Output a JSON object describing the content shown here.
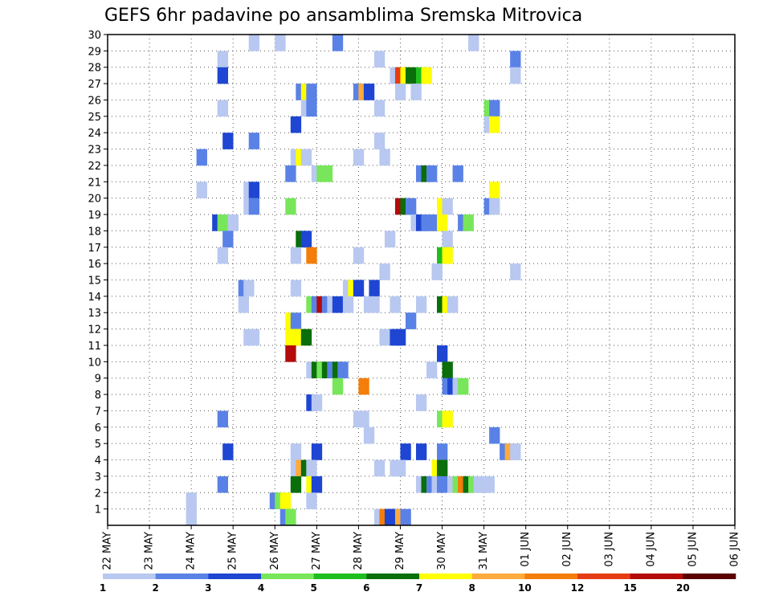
{
  "chart_data": {
    "type": "heatmap",
    "title": "GEFS 6hr padavine po ansamblima Sremska Mitrovica",
    "xlabel": "",
    "ylabel": "",
    "x_ticks": [
      "22 MAY",
      "23 MAY",
      "24 MAY",
      "25 MAY",
      "26 MAY",
      "27 MAY",
      "28 MAY",
      "29 MAY",
      "30 MAY",
      "31 MAY",
      "01 JUN",
      "02 JUN",
      "03 JUN",
      "04 JUN",
      "05 JUN",
      "06 JUN"
    ],
    "y_ticks": [
      1,
      2,
      3,
      4,
      5,
      6,
      7,
      8,
      9,
      10,
      11,
      12,
      13,
      14,
      15,
      16,
      17,
      18,
      19,
      20,
      21,
      22,
      23,
      24,
      25,
      26,
      27,
      28,
      29,
      30
    ],
    "ylim": [
      0,
      30
    ],
    "grid": true,
    "legend": {
      "placement": "bottom",
      "levels": [
        1,
        2,
        3,
        4,
        5,
        6,
        7,
        8,
        10,
        12,
        15,
        20
      ],
      "colors": [
        "#b8c8f0",
        "#5a82e6",
        "#1e46d2",
        "#78e65a",
        "#1ebe1e",
        "#0a6e0a",
        "#ffff00",
        "#ffaa3c",
        "#f57d0a",
        "#e63c14",
        "#b40a0a",
        "#5a0000"
      ]
    },
    "cells": [
      [
        13.5,
        30,
        1
      ],
      [
        16,
        30,
        1
      ],
      [
        21.5,
        30,
        2
      ],
      [
        34.5,
        30,
        1
      ],
      [
        10.5,
        29,
        1
      ],
      [
        25.5,
        29,
        1
      ],
      [
        38.5,
        29,
        2
      ],
      [
        10.5,
        28,
        3
      ],
      [
        27,
        28,
        1
      ],
      [
        27.5,
        28,
        12
      ],
      [
        28,
        28,
        7
      ],
      [
        28.5,
        28,
        6
      ],
      [
        29.5,
        28,
        5
      ],
      [
        30,
        28,
        7
      ],
      [
        38.5,
        28,
        1
      ],
      [
        18,
        27,
        2
      ],
      [
        18.5,
        27,
        7
      ],
      [
        19,
        27,
        2
      ],
      [
        23.5,
        27,
        2
      ],
      [
        24,
        27,
        8
      ],
      [
        24.5,
        27,
        3
      ],
      [
        27.5,
        27,
        1
      ],
      [
        29,
        27,
        1
      ],
      [
        10.5,
        26,
        1
      ],
      [
        18.5,
        26,
        1
      ],
      [
        19,
        26,
        2
      ],
      [
        25.5,
        26,
        1
      ],
      [
        36,
        26,
        4
      ],
      [
        36.5,
        26,
        2
      ],
      [
        17.5,
        25,
        3
      ],
      [
        36,
        25,
        1
      ],
      [
        36.5,
        25,
        7
      ],
      [
        13.5,
        24,
        2
      ],
      [
        11,
        24,
        3
      ],
      [
        25.5,
        24,
        1
      ],
      [
        8.5,
        23,
        2
      ],
      [
        17.5,
        23,
        1
      ],
      [
        18,
        23,
        7
      ],
      [
        18.5,
        23,
        1
      ],
      [
        23.5,
        23,
        1
      ],
      [
        26,
        23,
        1
      ],
      [
        17,
        22,
        2
      ],
      [
        19.5,
        22,
        1
      ],
      [
        20,
        22,
        4
      ],
      [
        20.5,
        22,
        4
      ],
      [
        29.5,
        22,
        2
      ],
      [
        30,
        22,
        6
      ],
      [
        30.5,
        22,
        2
      ],
      [
        33,
        22,
        2
      ],
      [
        8.5,
        21,
        1
      ],
      [
        13,
        21,
        1
      ],
      [
        13.5,
        21,
        3
      ],
      [
        36.5,
        21,
        7
      ],
      [
        13,
        20,
        1
      ],
      [
        13.5,
        20,
        2
      ],
      [
        17,
        20,
        4
      ],
      [
        27.5,
        20,
        15
      ],
      [
        28,
        20,
        6
      ],
      [
        28.5,
        20,
        2
      ],
      [
        31.5,
        20,
        7
      ],
      [
        32,
        20,
        1
      ],
      [
        36,
        20,
        2
      ],
      [
        36.5,
        20,
        1
      ],
      [
        10,
        19,
        3
      ],
      [
        10.5,
        19,
        4
      ],
      [
        11.5,
        19,
        1
      ],
      [
        29,
        19,
        1
      ],
      [
        29.5,
        19,
        3
      ],
      [
        30,
        19,
        2
      ],
      [
        30.5,
        19,
        2
      ],
      [
        31,
        19,
        2
      ],
      [
        31.5,
        19,
        7
      ],
      [
        33.5,
        19,
        2
      ],
      [
        34,
        19,
        4
      ],
      [
        11,
        18,
        2
      ],
      [
        18,
        18,
        6
      ],
      [
        18.5,
        18,
        3
      ],
      [
        26.5,
        18,
        1
      ],
      [
        32,
        18,
        1
      ],
      [
        10.5,
        17,
        1
      ],
      [
        17.5,
        17,
        1
      ],
      [
        19,
        17,
        10
      ],
      [
        23.5,
        17,
        1
      ],
      [
        31.5,
        17,
        5
      ],
      [
        32,
        17,
        7
      ],
      [
        26,
        16,
        1
      ],
      [
        31,
        16,
        1
      ],
      [
        38.5,
        16,
        1
      ],
      [
        12.5,
        15,
        2
      ],
      [
        13,
        15,
        1
      ],
      [
        17.5,
        15,
        1
      ],
      [
        22.5,
        15,
        1
      ],
      [
        23,
        15,
        7
      ],
      [
        23.5,
        15,
        3
      ],
      [
        25,
        15,
        3
      ],
      [
        12.5,
        14,
        1
      ],
      [
        19,
        14,
        4
      ],
      [
        19.5,
        14,
        2
      ],
      [
        20,
        14,
        15
      ],
      [
        20.5,
        14,
        2
      ],
      [
        21,
        14,
        1
      ],
      [
        21.5,
        14,
        3
      ],
      [
        22.5,
        14,
        1
      ],
      [
        24.5,
        14,
        1
      ],
      [
        25,
        14,
        1
      ],
      [
        27,
        14,
        1
      ],
      [
        29.5,
        14,
        1
      ],
      [
        31.5,
        14,
        6
      ],
      [
        32,
        14,
        7
      ],
      [
        32.5,
        14,
        1
      ],
      [
        17,
        13,
        7
      ],
      [
        17.5,
        13,
        2
      ],
      [
        28.5,
        13,
        2
      ],
      [
        13,
        12,
        1
      ],
      [
        13.5,
        12,
        1
      ],
      [
        17,
        12,
        7
      ],
      [
        17.5,
        12,
        7
      ],
      [
        18,
        12,
        7
      ],
      [
        18.5,
        12,
        6
      ],
      [
        26,
        12,
        1
      ],
      [
        27,
        12,
        3
      ],
      [
        27.5,
        12,
        3
      ],
      [
        17,
        11,
        15
      ],
      [
        31.5,
        11,
        3
      ],
      [
        19,
        10,
        1
      ],
      [
        19.5,
        10,
        6
      ],
      [
        20,
        10,
        4
      ],
      [
        20.5,
        10,
        6
      ],
      [
        21,
        10,
        2
      ],
      [
        21.5,
        10,
        6
      ],
      [
        22,
        10,
        2
      ],
      [
        30.5,
        10,
        1
      ],
      [
        32,
        10,
        6
      ],
      [
        21.5,
        9,
        4
      ],
      [
        24,
        9,
        10
      ],
      [
        32,
        9,
        2
      ],
      [
        32.5,
        9,
        3
      ],
      [
        33,
        9,
        1
      ],
      [
        33.5,
        9,
        4
      ],
      [
        19,
        8,
        3
      ],
      [
        19.5,
        8,
        1
      ],
      [
        29.5,
        8,
        1
      ],
      [
        10.5,
        7,
        2
      ],
      [
        23.5,
        7,
        1
      ],
      [
        24,
        7,
        1
      ],
      [
        31.5,
        7,
        4
      ],
      [
        32,
        7,
        7
      ],
      [
        24.5,
        6,
        1
      ],
      [
        36.5,
        6,
        2
      ],
      [
        11,
        5,
        3
      ],
      [
        17.5,
        5,
        1
      ],
      [
        19.5,
        5,
        3
      ],
      [
        28,
        5,
        3
      ],
      [
        29.5,
        5,
        3
      ],
      [
        31.5,
        5,
        2
      ],
      [
        37.5,
        5,
        2
      ],
      [
        38,
        5,
        8
      ],
      [
        38.5,
        5,
        1
      ],
      [
        17.5,
        4,
        1
      ],
      [
        18,
        4,
        8
      ],
      [
        18.5,
        4,
        6
      ],
      [
        19,
        4,
        1
      ],
      [
        25.5,
        4,
        1
      ],
      [
        27,
        4,
        1
      ],
      [
        27.5,
        4,
        1
      ],
      [
        31,
        4,
        7
      ],
      [
        31.5,
        4,
        6
      ],
      [
        10.5,
        3,
        2
      ],
      [
        17.5,
        3,
        6
      ],
      [
        19,
        3,
        7
      ],
      [
        19.5,
        3,
        3
      ],
      [
        29.5,
        3,
        1
      ],
      [
        30,
        3,
        6
      ],
      [
        30.5,
        3,
        2
      ],
      [
        31,
        3,
        1
      ],
      [
        31.5,
        3,
        2
      ],
      [
        32.5,
        3,
        1
      ],
      [
        33,
        3,
        4
      ],
      [
        33.5,
        3,
        10
      ],
      [
        34,
        3,
        6
      ],
      [
        34.5,
        3,
        4
      ],
      [
        35,
        3,
        1
      ],
      [
        35.5,
        3,
        1
      ],
      [
        36,
        3,
        1
      ],
      [
        7.5,
        2,
        1
      ],
      [
        15.5,
        2,
        2
      ],
      [
        16,
        2,
        4
      ],
      [
        16.5,
        2,
        7
      ],
      [
        19,
        2,
        1
      ],
      [
        7.5,
        1,
        1
      ],
      [
        16.5,
        1,
        2
      ],
      [
        17,
        1,
        4
      ],
      [
        25.5,
        1,
        1
      ],
      [
        26,
        1,
        10
      ],
      [
        26.5,
        1,
        3
      ],
      [
        27,
        1,
        3
      ],
      [
        27.5,
        1,
        8
      ],
      [
        28,
        1,
        2
      ]
    ]
  }
}
